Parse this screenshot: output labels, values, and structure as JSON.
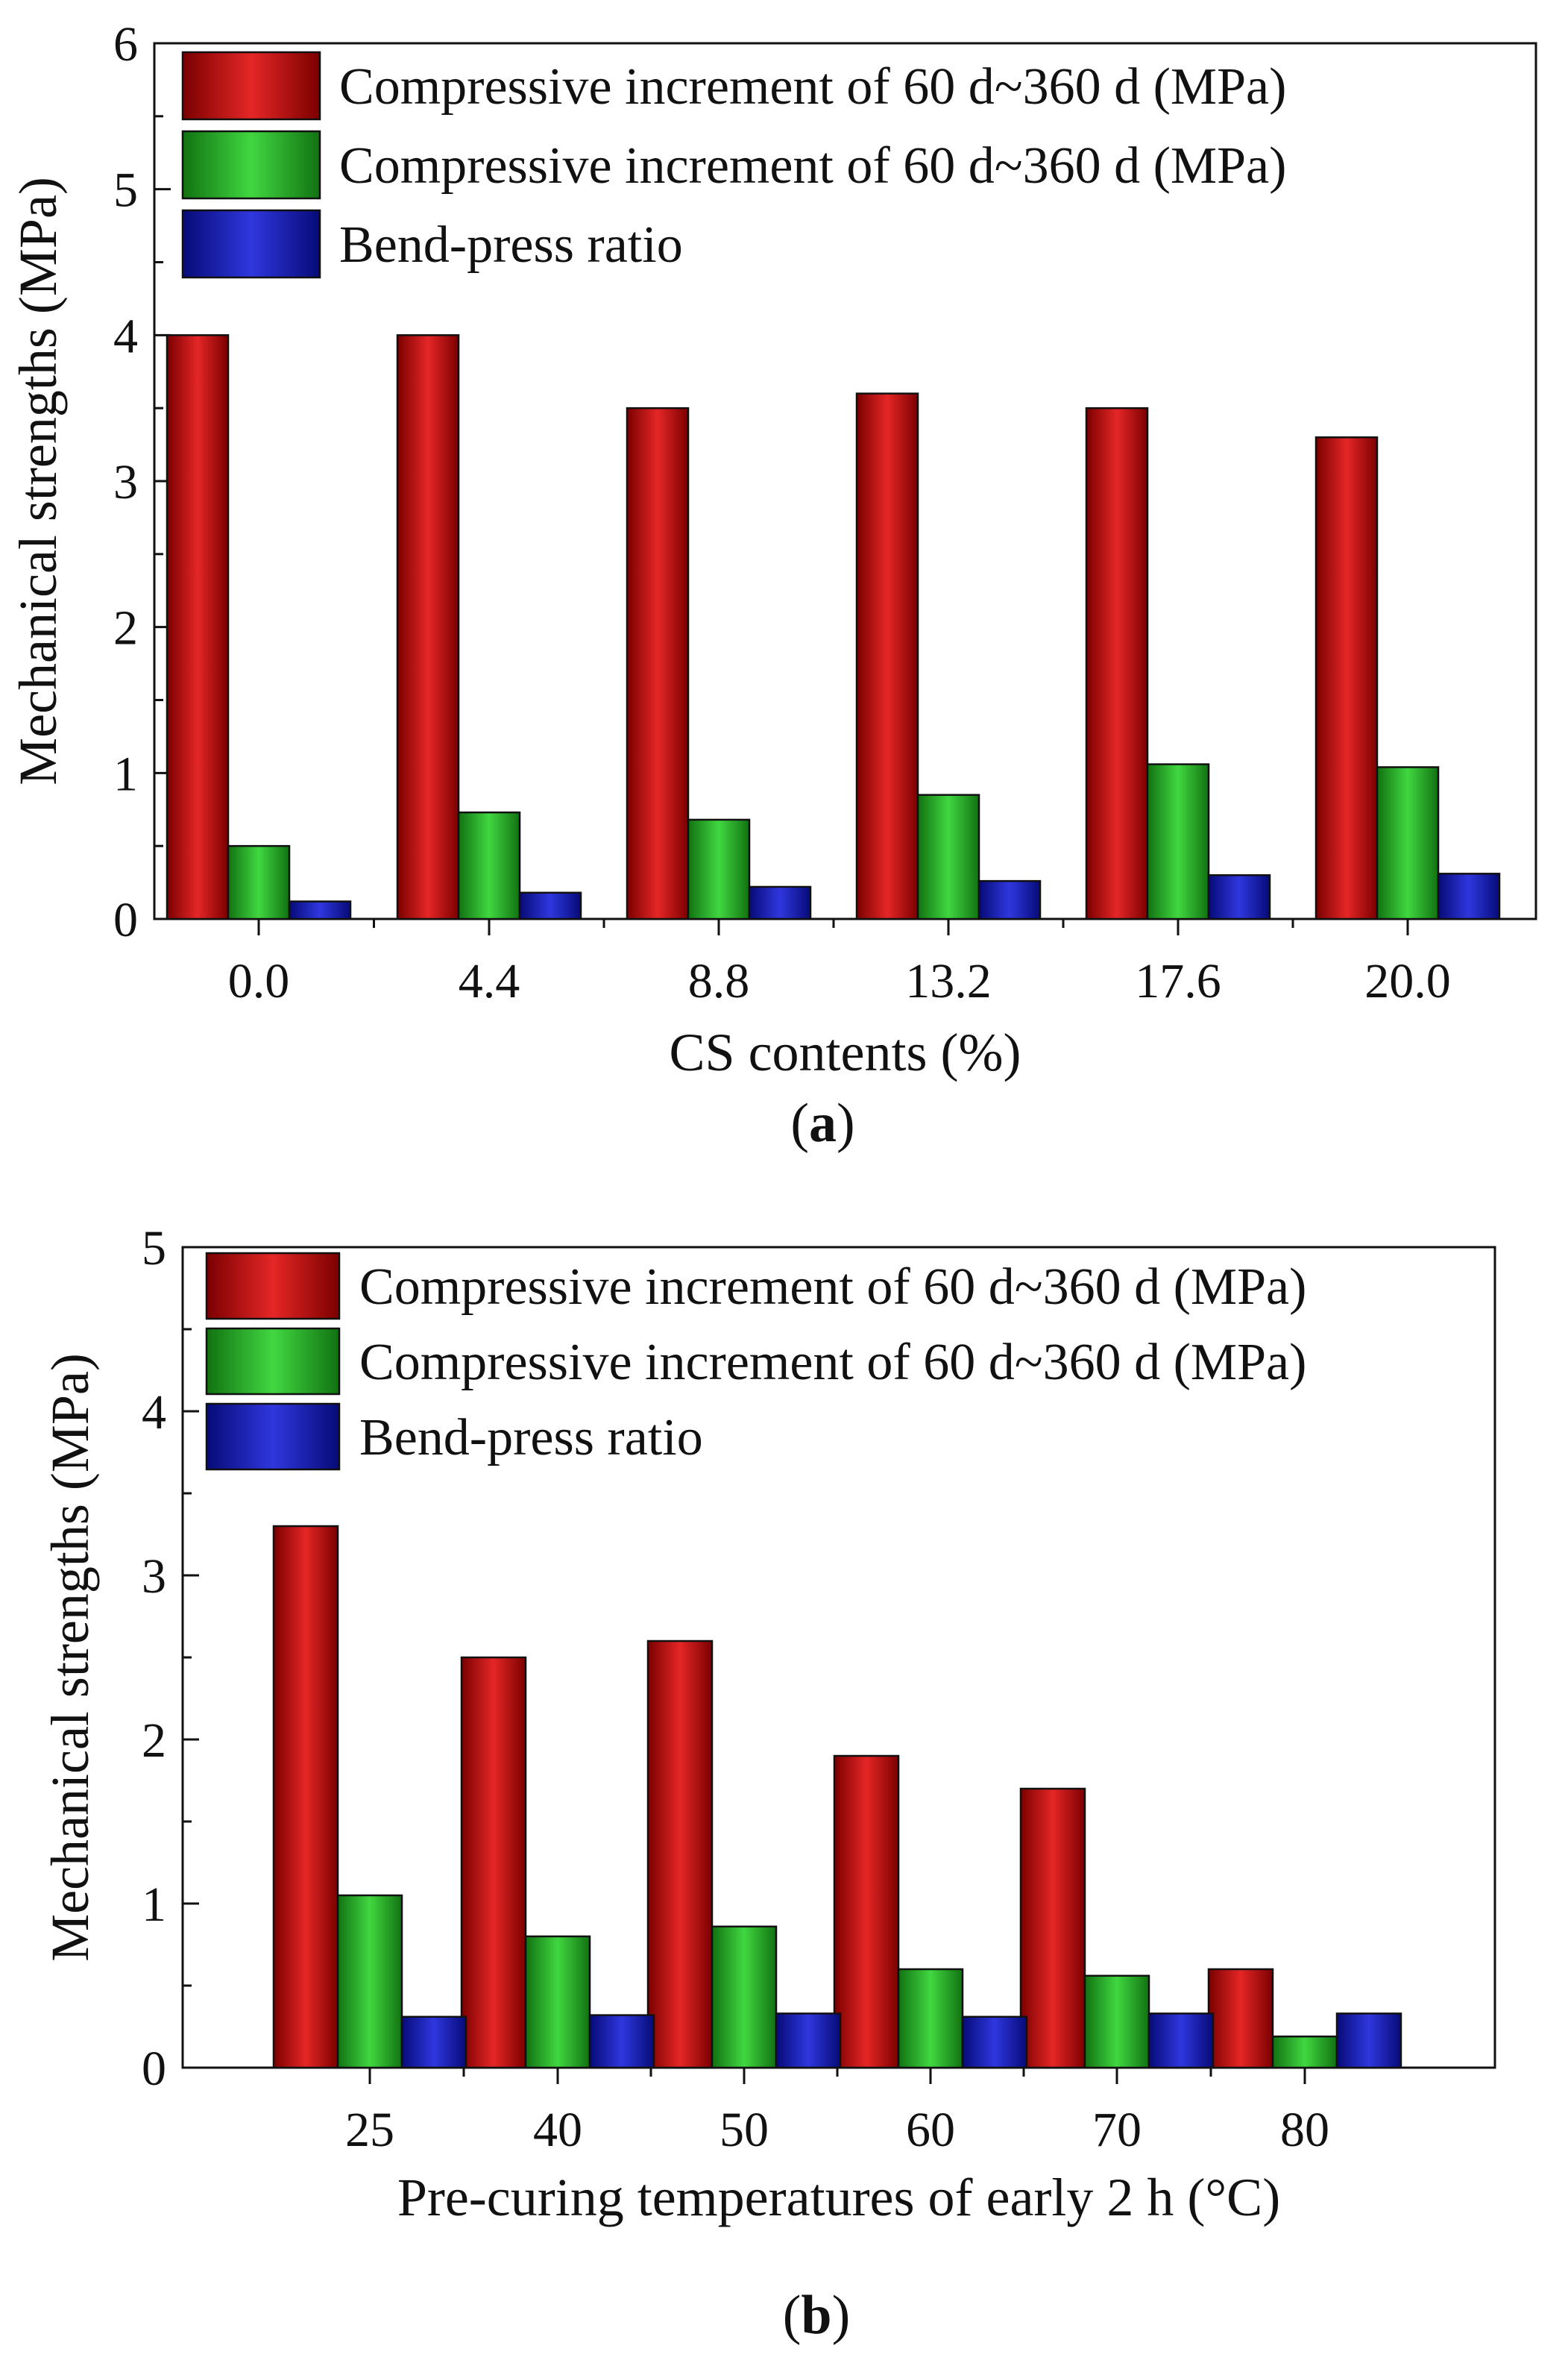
{
  "chart_data": [
    {
      "type": "bar",
      "panel_label": "a",
      "categories": [
        "0.0",
        "4.4",
        "8.8",
        "13.2",
        "17.6",
        "20.0"
      ],
      "series": [
        {
          "name": "Compressive increment of 60 d~360 d (MPa)",
          "color": "#e00000",
          "values": [
            4.0,
            4.0,
            3.5,
            3.6,
            3.5,
            3.3
          ]
        },
        {
          "name": "Compressive increment of  60 d~360 d (MPa)",
          "color": "#1fd01f",
          "values": [
            0.5,
            0.73,
            0.68,
            0.85,
            1.06,
            1.04
          ]
        },
        {
          "name": "Bend-press ratio",
          "color": "#0a14d8",
          "values": [
            0.12,
            0.18,
            0.22,
            0.26,
            0.3,
            0.31
          ]
        }
      ],
      "xlabel": "CS contents (%)",
      "ylabel": "Mechanical strengths (MPa)",
      "ylim": [
        0,
        6
      ],
      "yticks": [
        "0",
        "1",
        "2",
        "3",
        "4",
        "5",
        "6"
      ],
      "legend_position": "top-left"
    },
    {
      "type": "bar",
      "panel_label": "b",
      "categories": [
        "25",
        "40",
        "50",
        "60",
        "70",
        "80"
      ],
      "series": [
        {
          "name": "Compressive increment of 60 d~360 d (MPa)",
          "color": "#e00000",
          "values": [
            3.3,
            2.5,
            2.6,
            1.9,
            1.7,
            0.6
          ]
        },
        {
          "name": "Compressive increment of  60 d~360 d (MPa)",
          "color": "#1fd01f",
          "values": [
            1.05,
            0.8,
            0.86,
            0.6,
            0.56,
            0.19
          ]
        },
        {
          "name": "Bend-press ratio",
          "color": "#0a14d8",
          "values": [
            0.31,
            0.32,
            0.33,
            0.31,
            0.33,
            0.33
          ]
        }
      ],
      "xlabel": "Pre-curing temperatures of early 2 h (°C)",
      "ylabel": "Mechanical strengths (MPa)",
      "ylim": [
        0,
        5
      ],
      "yticks": [
        "0",
        "1",
        "2",
        "3",
        "4",
        "5"
      ],
      "legend_position": "top-left"
    }
  ]
}
